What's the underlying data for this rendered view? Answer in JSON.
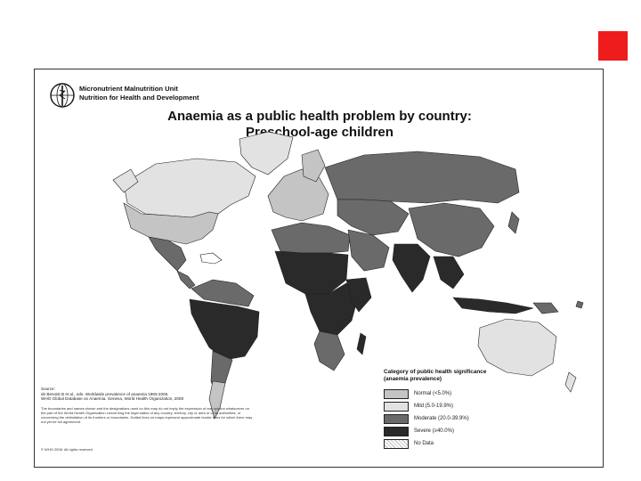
{
  "org": {
    "unit": "Micronutrient Malnutrition Unit",
    "dept": "Nutrition for Health and Development"
  },
  "title": {
    "line1": "Anaemia as a public health problem by country:",
    "line2": "Preschool-age children"
  },
  "source": {
    "label": "Source:",
    "line1": "de Benoist B et al., eds. Worldwide prevalence of anaemia 1993-2005.",
    "line2": "WHO Global Database on Anaemia. Geneva, World Health Organization, 2008"
  },
  "disclaimer": "The boundaries and names shown and the designations used on this map do not imply the expression of any opinion whatsoever on the part of the World Health Organization concerning the legal status of any country, territory, city or area or of its authorities, or concerning the delimitation of its frontiers or boundaries. Dotted lines on maps represent approximate border lines for which there may not yet be full agreement.",
  "copyright": "© WHO 2008. All rights reserved",
  "legend": {
    "title_line1": "Category of public health significance",
    "title_line2": "(anaemia prevalence)",
    "items": [
      {
        "label": "Normal (<5.0%)",
        "color": "#c4c4c4"
      },
      {
        "label": "Mild (5.0-19.9%)",
        "color": "#e2e2e2"
      },
      {
        "label": "Moderate (20.0-39.9%)",
        "color": "#6a6a6a"
      },
      {
        "label": "Severe (≥40.0%)",
        "color": "#2a2a2a"
      },
      {
        "label": "No Data",
        "color": "#ffffff"
      }
    ]
  },
  "map_colors": {
    "normal": "#c4c4c4",
    "mild": "#e2e2e2",
    "moderate": "#6a6a6a",
    "severe": "#2a2a2a",
    "nodata": "#ffffff",
    "border": "#222222"
  }
}
